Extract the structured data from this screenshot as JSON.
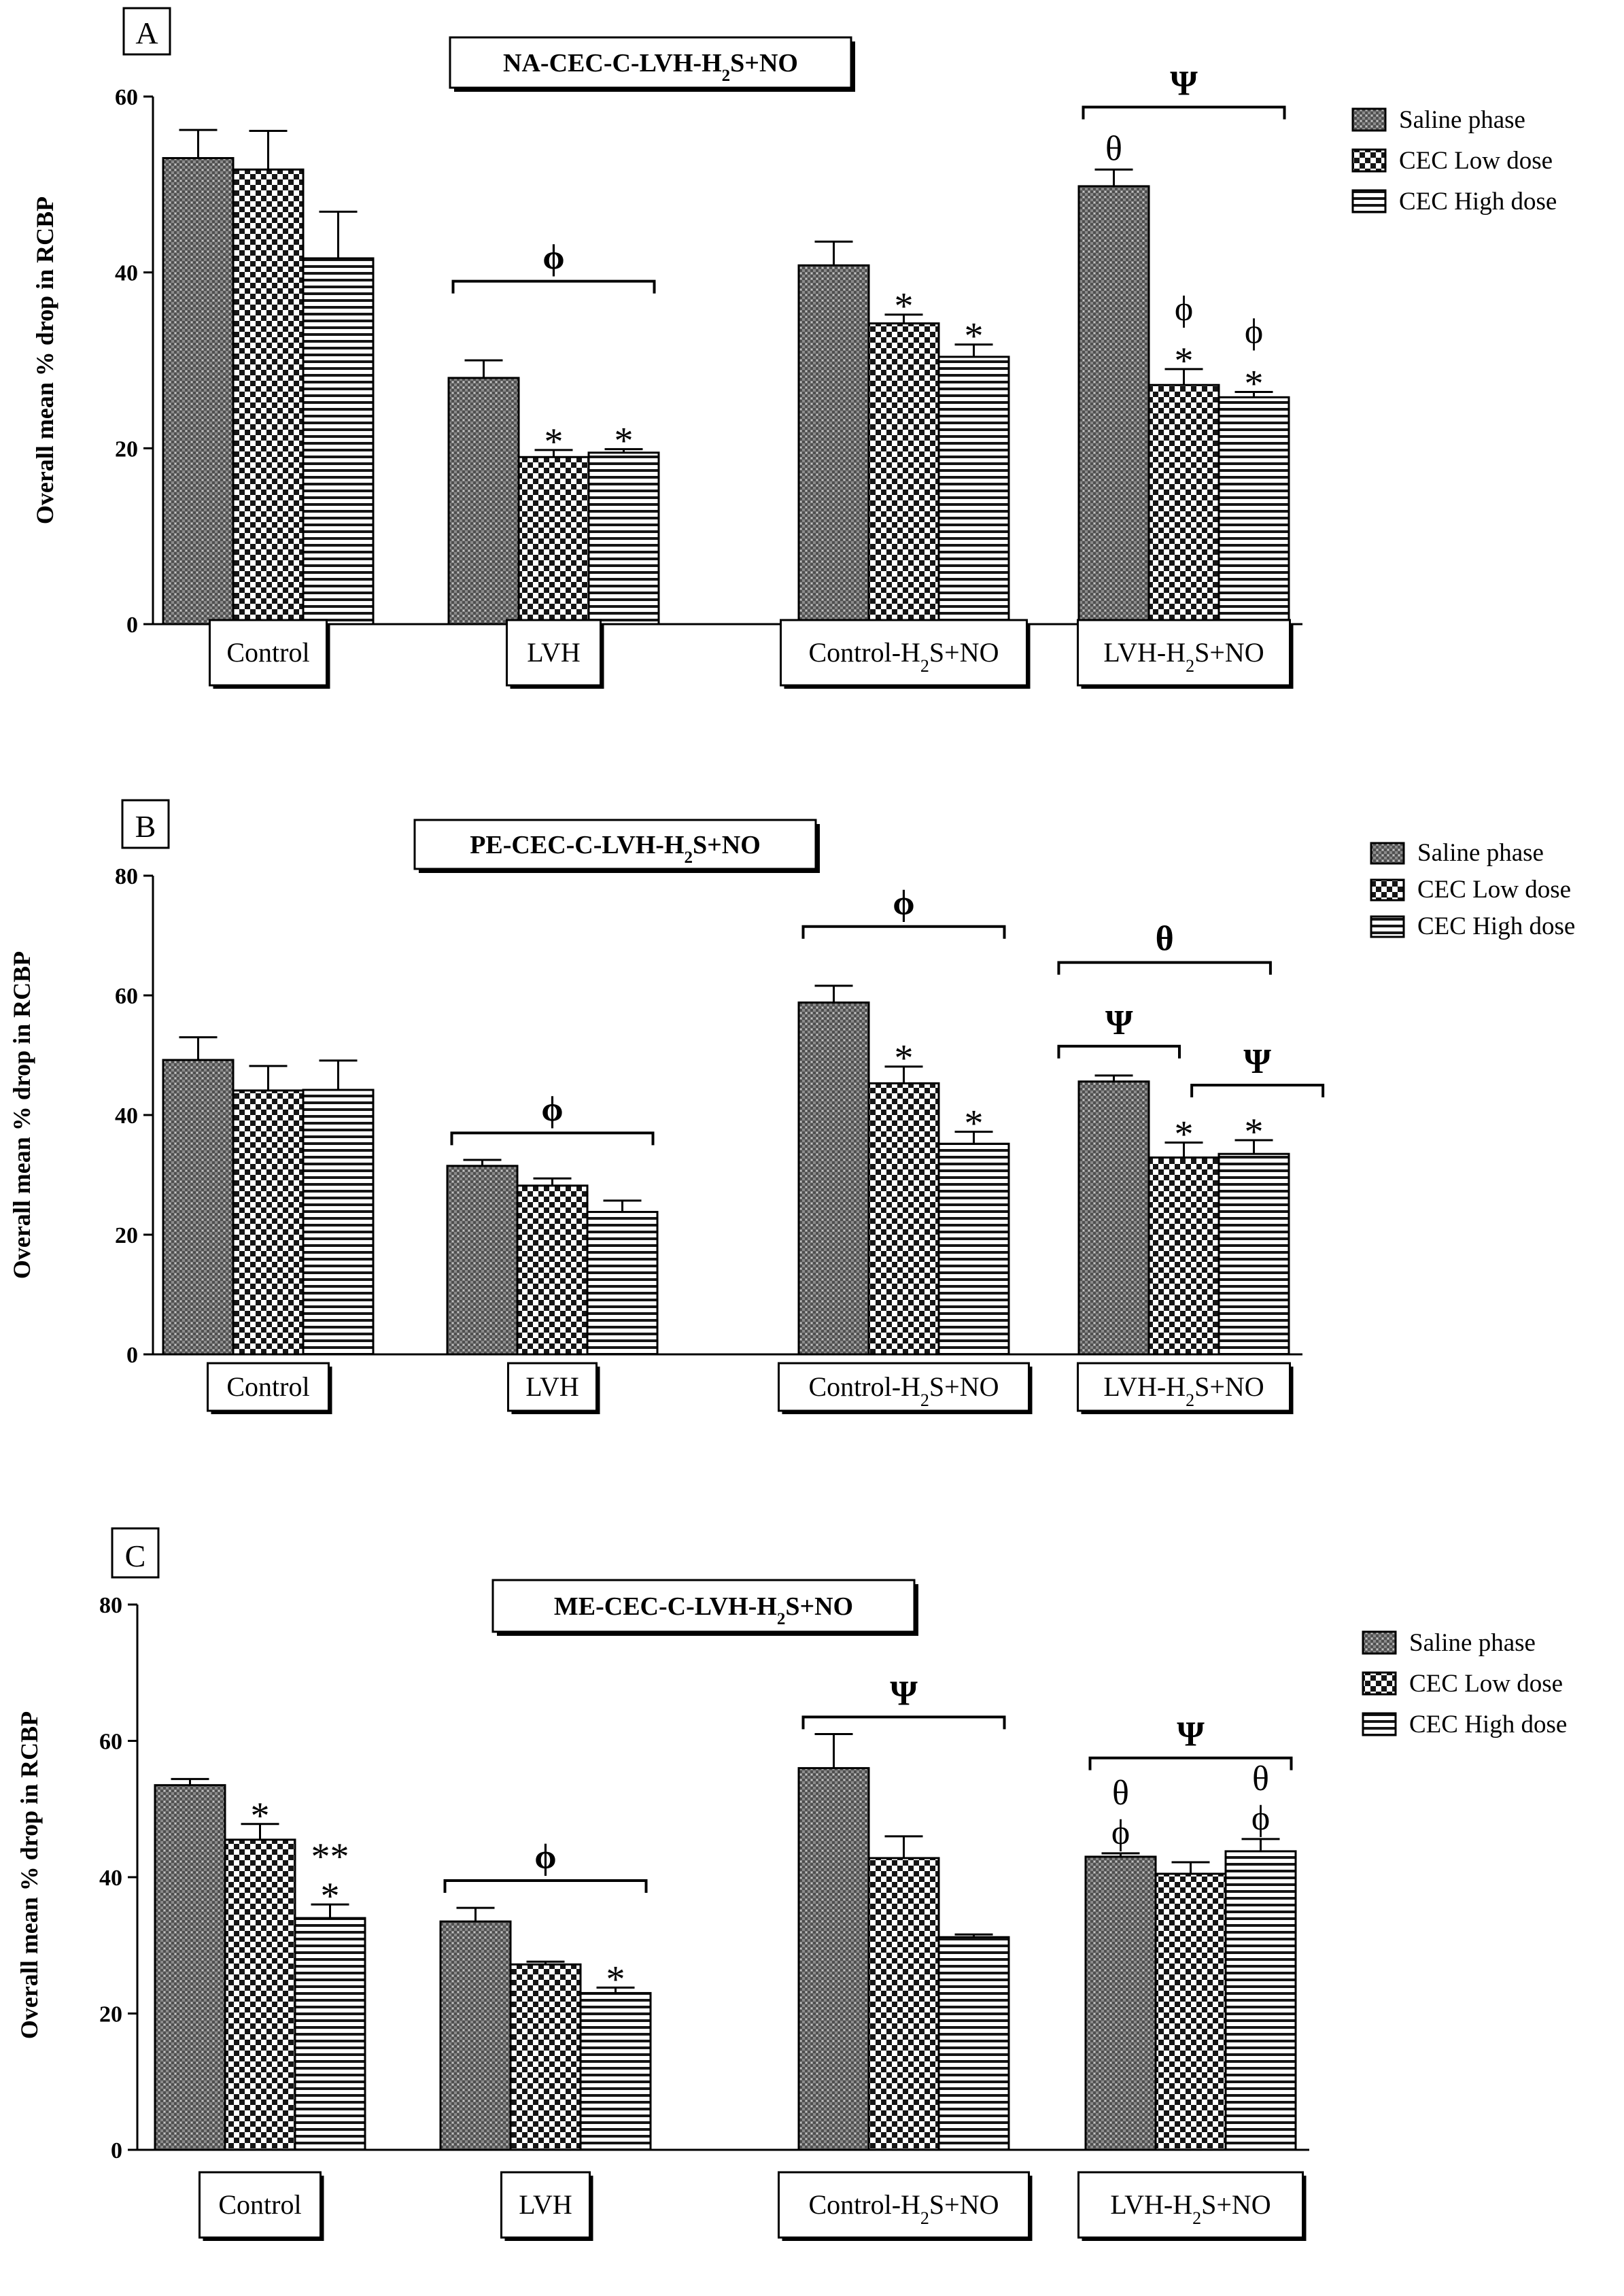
{
  "legend_labels": [
    "Saline phase",
    "CEC Low dose",
    "CEC High dose"
  ],
  "group_labels": [
    "Control",
    "LVH",
    "Control-H2S+NO",
    "LVH-H2S+NO"
  ],
  "chart_data": [
    {
      "type": "bar",
      "panel_letter": "A",
      "title": "NA-CEC-C-LVH-H2S+NO",
      "ylabel": "Overall  mean % drop in  RCBP",
      "ylim": [
        0,
        60
      ],
      "yticks": [
        "0",
        "20",
        "40",
        "60"
      ],
      "categories": [
        "Control",
        "LVH",
        "Control-H2S+NO",
        "LVH-H2S+NO"
      ],
      "series": [
        {
          "name": "Saline phase",
          "values": [
            53,
            28,
            40.8,
            49.8
          ],
          "errors": [
            3.2,
            2,
            2.7,
            1.9
          ]
        },
        {
          "name": "CEC Low dose",
          "values": [
            51.7,
            19,
            34.2,
            27.2
          ],
          "errors": [
            4.4,
            0.8,
            1,
            1.8
          ]
        },
        {
          "name": "CEC High dose",
          "values": [
            41.6,
            19.5,
            30.4,
            25.8
          ],
          "errors": [
            5.3,
            0.4,
            1.4,
            0.6
          ]
        }
      ],
      "marks": [
        {
          "group": 1,
          "bar": 1,
          "text": "*"
        },
        {
          "group": 1,
          "bar": 2,
          "text": "*"
        },
        {
          "group": 2,
          "bar": 1,
          "text": "*"
        },
        {
          "group": 2,
          "bar": 2,
          "text": "*"
        },
        {
          "group": 3,
          "bar": 0,
          "text": "θ"
        },
        {
          "group": 3,
          "bar": 1,
          "text": "*"
        },
        {
          "group": 3,
          "bar": 1,
          "text": "ϕ"
        },
        {
          "group": 3,
          "bar": 2,
          "text": "*"
        },
        {
          "group": 3,
          "bar": 2,
          "text": "ϕ"
        }
      ],
      "brackets": [
        {
          "group": 1,
          "from": 0,
          "to": 2,
          "level": 39,
          "text": "ϕ"
        },
        {
          "group": 3,
          "from": 0,
          "to": 2,
          "level": 58.8,
          "text": "Ψ"
        }
      ]
    },
    {
      "type": "bar",
      "panel_letter": "B",
      "title": "PE-CEC-C-LVH-H2S+NO",
      "ylabel": "Overall  mean % drop in RCBP",
      "ylim": [
        0,
        80
      ],
      "yticks": [
        "0",
        "20",
        "40",
        "60",
        "80"
      ],
      "categories": [
        "Control",
        "LVH",
        "Control-H2S+NO",
        "LVH-H2S+NO"
      ],
      "series": [
        {
          "name": "Saline phase",
          "values": [
            49.2,
            31.5,
            58.8,
            45.6
          ],
          "errors": [
            3.8,
            1,
            2.8,
            1
          ]
        },
        {
          "name": "CEC Low dose",
          "values": [
            44.1,
            28.2,
            45.3,
            32.9
          ],
          "errors": [
            4.1,
            1.2,
            2.8,
            2.5
          ]
        },
        {
          "name": "CEC High dose",
          "values": [
            44.2,
            23.8,
            35.2,
            33.5
          ],
          "errors": [
            4.9,
            1.9,
            2,
            2.3
          ]
        }
      ],
      "marks": [
        {
          "group": 2,
          "bar": 1,
          "text": "*"
        },
        {
          "group": 2,
          "bar": 2,
          "text": "*"
        },
        {
          "group": 3,
          "bar": 1,
          "text": "*"
        },
        {
          "group": 3,
          "bar": 2,
          "text": "*"
        }
      ],
      "brackets": [
        {
          "group": 1,
          "from": 0,
          "to": 2,
          "level": 37,
          "text": "ϕ"
        },
        {
          "group": 2,
          "from": 0,
          "to": 2,
          "level": 71.5,
          "text": "ϕ"
        },
        {
          "group": 3,
          "from": -0.35,
          "to": 1.8,
          "level": 65.5,
          "text": "θ"
        },
        {
          "group": 3,
          "from": -0.35,
          "to": 0.5,
          "level": 51.5,
          "text": "Ψ"
        },
        {
          "group": 3,
          "from": 1.55,
          "to": 2.55,
          "level": 45,
          "text": "Ψ"
        }
      ]
    },
    {
      "type": "bar",
      "panel_letter": "C",
      "title": "ME-CEC-C-LVH-H2S+NO",
      "ylabel": "Overall  mean % drop in  RCBP",
      "ylim": [
        0,
        80
      ],
      "yticks": [
        "0",
        "20",
        "40",
        "60",
        "80"
      ],
      "categories": [
        "Control",
        "LVH",
        "Control-H2S+NO",
        "LVH-H2S+NO"
      ],
      "series": [
        {
          "name": "Saline phase",
          "values": [
            53.5,
            33.5,
            56,
            43
          ],
          "errors": [
            0.9,
            2,
            5,
            0.5
          ]
        },
        {
          "name": "CEC Low dose",
          "values": [
            45.5,
            27.2,
            42.8,
            40.5
          ],
          "errors": [
            2.3,
            0.4,
            3.2,
            1.7
          ]
        },
        {
          "name": "CEC High dose",
          "values": [
            34,
            23,
            31.2,
            43.8
          ],
          "errors": [
            2,
            0.8,
            0.4,
            1.8
          ]
        }
      ],
      "marks": [
        {
          "group": 0,
          "bar": 1,
          "text": "*"
        },
        {
          "group": 0,
          "bar": 2,
          "text": "*"
        },
        {
          "group": 0,
          "bar": 2,
          "text": "**"
        },
        {
          "group": 1,
          "bar": 2,
          "text": "*"
        },
        {
          "group": 3,
          "bar": 0,
          "text": "ϕ"
        },
        {
          "group": 3,
          "bar": 0,
          "text": "θ"
        },
        {
          "group": 3,
          "bar": 2,
          "text": "ϕ"
        },
        {
          "group": 3,
          "bar": 2,
          "text": "θ"
        }
      ],
      "brackets": [
        {
          "group": 1,
          "from": 0,
          "to": 2,
          "level": 39.5,
          "text": "ϕ"
        },
        {
          "group": 2,
          "from": 0,
          "to": 2,
          "level": 63.5,
          "text": "Ψ"
        },
        {
          "group": 3,
          "from": 0,
          "to": 2,
          "level": 57.5,
          "text": "Ψ"
        }
      ]
    }
  ]
}
